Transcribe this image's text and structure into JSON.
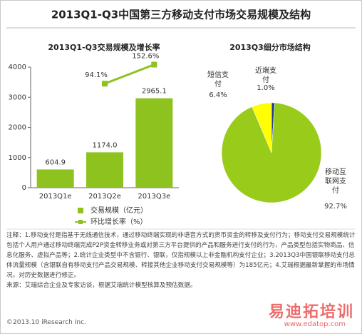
{
  "title": "2013Q1-Q3中国第三方移动支付市场交易规模及结构",
  "chart_data": [
    {
      "type": "bar",
      "title": "2013Q1-Q3交易规模及增长率",
      "categories": [
        "2013Q1e",
        "2013Q2e",
        "2013Q3e"
      ],
      "series": [
        {
          "name": "交易规模（亿元）",
          "type": "bar",
          "color": "#8dc21f",
          "values": [
            604.9,
            1174.0,
            2965.1
          ],
          "value_labels": [
            "604.9",
            "1174.0",
            "2965.1"
          ]
        },
        {
          "name": "环比增长率（%）",
          "type": "line",
          "axis": "y2",
          "color": "#8dc21f",
          "values": [
            null,
            94.1,
            152.6
          ],
          "value_labels": [
            null,
            "94.1%",
            "152.6%"
          ]
        }
      ],
      "ylim": [
        0,
        4000
      ],
      "yticks": [
        0,
        1000,
        2000,
        3000,
        4000
      ],
      "y2lim": [
        -225,
        145
      ]
    },
    {
      "type": "pie",
      "title": "2013Q3细分市场结构",
      "categories": [
        "近端支付",
        "移动互联网支付",
        "短信支付"
      ],
      "values": [
        1.0,
        92.7,
        6.4
      ],
      "value_labels": [
        "1.0%",
        "92.7%",
        "6.4%"
      ],
      "colors": [
        "#1f3a8f",
        "#99cc1a",
        "#ffff00"
      ]
    }
  ],
  "notes": "注释：1.移动支付是指基于无线通信技术，通过移动终端实现的非语音方式的货币资金的转移及支付行为；移动支付交易规模统计包括个人用户通过移动终端完成P2P资金转移业务或对第三方平台提供的产品和服务进行支付的行为，产品类型包括实物商品、信息化服务、虚拟产品等；2.统计企业类型中不含银行、银联，仅指规模以上非金融机构支付企业；3.2013Q3中国银联移动支付总体流量规模（含银联自有移动支付产品交易规模、转接其他企业移动支付交易规模等）为185亿元；4.艾瑞根据最新掌握的市场情况，对历史数据进行修正。",
  "source": "来源：艾瑞综合企业及专家访谈，根据艾瑞统计模型核算及预估数据。",
  "footer": "©2013.10 iResearch Inc.",
  "watermark": "易迪拓培训",
  "watermark_url": "www.edatop.com"
}
